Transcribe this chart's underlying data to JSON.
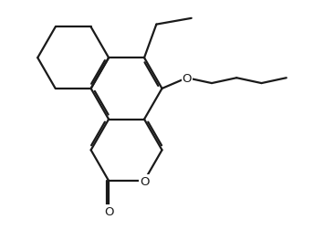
{
  "bg_color": "#ffffff",
  "line_color": "#1a1a1a",
  "lw": 1.6,
  "dbo": 0.055,
  "fig_width": 3.55,
  "fig_height": 2.53,
  "label_O_ring": "O",
  "label_O_butoxy": "O",
  "label_O_carbonyl": "O",
  "font_size": 9.5
}
